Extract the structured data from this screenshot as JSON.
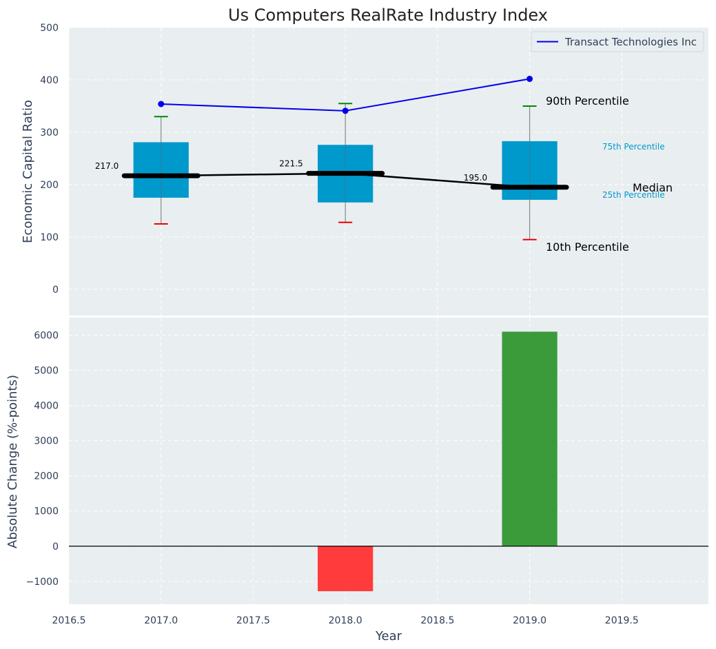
{
  "chart_data": [
    {
      "type": "box",
      "title": "Us Computers RealRate Industry Index",
      "ylabel": "Economic Capital Ratio",
      "xlabel": "",
      "ylim": [
        -50,
        500
      ],
      "yticks": [
        0,
        100,
        200,
        300,
        400,
        500
      ],
      "grid": true,
      "legend_position": "top-right",
      "categories": [
        2017.0,
        2018.0,
        2019.0
      ],
      "boxes": [
        {
          "x": 2017.0,
          "p10": 125,
          "p25": 175,
          "median": 217.0,
          "p75": 281,
          "p90": 330
        },
        {
          "x": 2018.0,
          "p10": 128,
          "p25": 166,
          "median": 221.5,
          "p75": 276,
          "p90": 355
        },
        {
          "x": 2019.0,
          "p10": 95,
          "p25": 171,
          "median": 195.0,
          "p75": 283,
          "p90": 350
        }
      ],
      "median_labels": [
        "217.0",
        "221.5",
        "195.0"
      ],
      "series": [
        {
          "name": "Transact Technologies Inc",
          "x": [
            2017.0,
            2018.0,
            2019.0
          ],
          "values": [
            354,
            341,
            402
          ],
          "color": "#0000ee"
        }
      ],
      "annotations": {
        "p90": "90th Percentile",
        "p75": "75th Percentile",
        "median": "Median",
        "p25": "25th Percentile",
        "p10": "10th Percentile"
      }
    },
    {
      "type": "bar",
      "ylabel": "Absolute Change (%-points)",
      "xlabel": "Year",
      "xlim": [
        2016.5,
        2019.97
      ],
      "xticks": [
        2016.5,
        2017.0,
        2017.5,
        2018.0,
        2018.5,
        2019.0,
        2019.5
      ],
      "xtick_labels": [
        "2016.5",
        "2017.0",
        "2017.5",
        "2018.0",
        "2018.5",
        "2019.0",
        "2019.5"
      ],
      "ylim": [
        -1650,
        6500
      ],
      "yticks": [
        -1000,
        0,
        1000,
        2000,
        3000,
        4000,
        5000,
        6000
      ],
      "ytick_labels": [
        "−1000",
        "0",
        "1000",
        "2000",
        "3000",
        "4000",
        "5000",
        "6000"
      ],
      "grid": true,
      "x": [
        2018.0,
        2019.0
      ],
      "values": [
        -1280,
        6100
      ],
      "colors": {
        "negative": "#ff3b3b",
        "positive": "#3b9b3b"
      }
    }
  ],
  "colors": {
    "plot_background": "#e9eef0",
    "box_fill": "#0099cc",
    "median_line": "#000000",
    "p90_cap": "#008800",
    "p10_cap": "#ee0000",
    "percentile_text": "#0099cc",
    "axis_text": "#2f3e57"
  }
}
